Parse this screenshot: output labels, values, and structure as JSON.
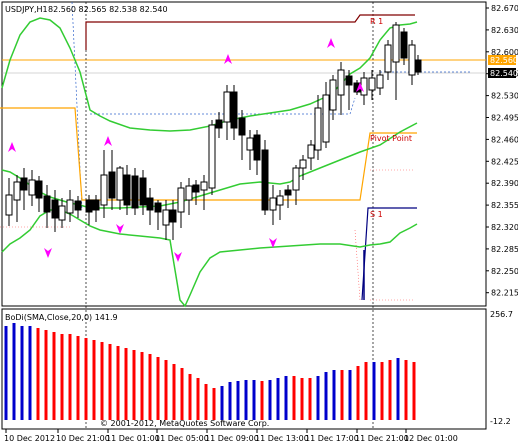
{
  "header": {
    "symbol": "USDJPY,H1",
    "ohlc": "82.560 82.565 82.538 82.540"
  },
  "indicator": {
    "header": "BoDi(SMA,Close,20,0) 141.9",
    "scale_top": "256.7",
    "scale_bottom": "-12.2"
  },
  "copyright": "© 2001-2012, MetaQuotes Software Corp.",
  "price_axis": {
    "ticks": [
      "82.670",
      "82.630",
      "82.600",
      "82.565",
      "82.530",
      "82.495",
      "82.460",
      "82.425",
      "82.390",
      "82.355",
      "82.320",
      "82.285",
      "82.250",
      "82.215"
    ],
    "current_price": "82.540",
    "level_price": "82.560"
  },
  "time_axis": [
    "10 Dec 2012",
    "10 Dec 21:00",
    "11 Dec 01:00",
    "11 Dec 05:00",
    "11 Dec 09:00",
    "11 Dec 13:00",
    "11 Dec 17:00",
    "11 Dec 21:00",
    "12 Dec 01:00"
  ],
  "pivots": {
    "r1": "R 1",
    "pivot": "Pivot Point",
    "s1": "S 1"
  },
  "colors": {
    "background": "#ffffff",
    "bands": "#33cc33",
    "level": "#ffa500",
    "r1": "#800000",
    "s1": "#000080",
    "arrows": "#ff00ff",
    "hist_up": "#ff0000",
    "hist_down": "#0000cc"
  }
}
